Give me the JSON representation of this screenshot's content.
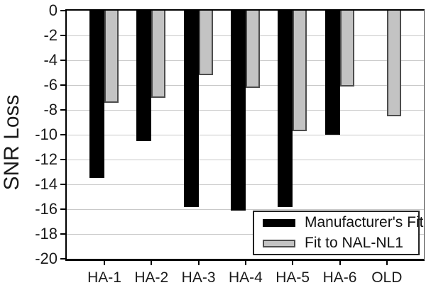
{
  "figure_title": "",
  "axes": {
    "ylabel": "SNR Loss"
  },
  "legend": {
    "items": [
      {
        "label": "Manufacturer's Fit",
        "color": "#000000"
      },
      {
        "label": "Fit to NAL-NL1",
        "color": "#c3c3c3"
      }
    ]
  },
  "chart_data": {
    "type": "bar",
    "orientation": "vertical-negative",
    "categories": [
      "HA-1",
      "HA-2",
      "HA-3",
      "HA-4",
      "HA-5",
      "HA-6",
      "OLD"
    ],
    "series": [
      {
        "name": "Manufacturer's Fit",
        "color": "#000000",
        "values": [
          -13.5,
          -10.5,
          -15.8,
          -16.1,
          -15.8,
          -10.0,
          null
        ]
      },
      {
        "name": "Fit to NAL-NL1",
        "color": "#c3c3c3",
        "values": [
          -7.4,
          -7.0,
          -5.2,
          -6.2,
          -9.7,
          -6.1,
          -8.5
        ]
      }
    ],
    "title": "",
    "xlabel": "",
    "ylabel": "SNR Loss",
    "ylim": [
      -20,
      0
    ],
    "yticks": [
      0,
      -2,
      -4,
      -6,
      -8,
      -10,
      -12,
      -14,
      -16,
      -18,
      -20
    ],
    "grid": true,
    "gridline_color": "#c9c9c9",
    "legend_position": "inside-bottom-right"
  }
}
